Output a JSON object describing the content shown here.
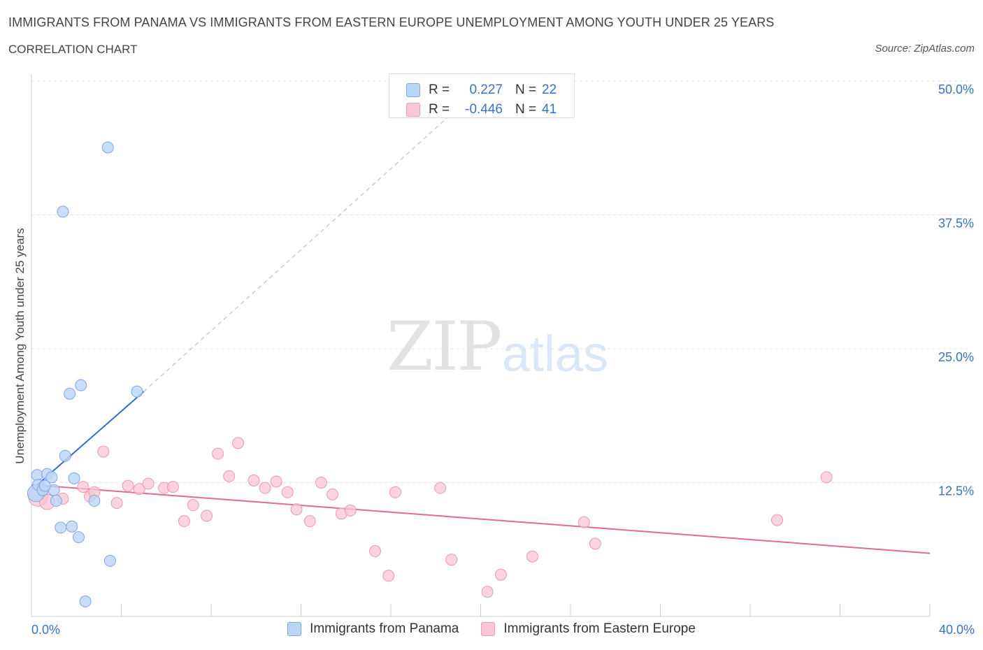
{
  "title": "IMMIGRANTS FROM PANAMA VS IMMIGRANTS FROM EASTERN EUROPE UNEMPLOYMENT AMONG YOUTH UNDER 25 YEARS",
  "subtitle": "CORRELATION CHART",
  "source": "Source: ZipAtlas.com",
  "watermark": {
    "zip": "ZIP",
    "atlas": "atlas"
  },
  "legend_top": {
    "rows": [
      {
        "r_label": "R =",
        "r_value": "0.227",
        "n_label": "N =",
        "n_value": "22"
      },
      {
        "r_label": "R =",
        "r_value": "-0.446",
        "n_label": "N =",
        "n_value": "41"
      }
    ]
  },
  "colors": {
    "panama_fill": "#bcd4f6",
    "panama_stroke": "#7fa8df",
    "panama_line": "#2f6fcc",
    "ee_fill": "#f9c6d5",
    "ee_stroke": "#eb9ab3",
    "ee_line": "#e06c96",
    "grid": "#e3e3e3",
    "axis": "#cccccc",
    "tick_text": "#3a72c4"
  },
  "chart_data": {
    "type": "scatter",
    "title": "IMMIGRANTS FROM PANAMA VS IMMIGRANTS FROM EASTERN EUROPE UNEMPLOYMENT AMONG YOUTH UNDER 25 YEARS",
    "xlabel": "",
    "ylabel": "Unemployment Among Youth under 25 years",
    "xlim": [
      0,
      40
    ],
    "ylim": [
      0,
      50
    ],
    "x_tick_labels": [
      "0.0%",
      "40.0%"
    ],
    "y_ticks": [
      12.5,
      25.0,
      37.5,
      50.0
    ],
    "y_tick_labels": [
      "12.5%",
      "25.0%",
      "37.5%",
      "50.0%"
    ],
    "grid": true,
    "series": [
      {
        "name": "Immigrants from Panama",
        "points": [
          [
            0.2,
            11.5
          ],
          [
            0.25,
            13.2
          ],
          [
            0.3,
            12.3
          ],
          [
            0.5,
            11.8
          ],
          [
            0.7,
            13.3
          ],
          [
            0.9,
            13.0
          ],
          [
            1.0,
            11.8
          ],
          [
            1.1,
            10.8
          ],
          [
            1.3,
            8.3
          ],
          [
            1.5,
            15.0
          ],
          [
            1.7,
            20.8
          ],
          [
            1.8,
            8.4
          ],
          [
            1.9,
            12.9
          ],
          [
            2.1,
            7.4
          ],
          [
            2.2,
            21.6
          ],
          [
            2.4,
            1.4
          ],
          [
            2.8,
            10.8
          ],
          [
            3.4,
            43.8
          ],
          [
            3.5,
            5.2
          ],
          [
            4.7,
            21.0
          ],
          [
            1.4,
            37.8
          ],
          [
            0.6,
            12.2
          ]
        ],
        "trend": {
          "x": [
            0.1,
            5.0
          ],
          "y": [
            12.0,
            21.0
          ],
          "dashed_extension_to": [
            19.0,
            47.5
          ]
        }
      },
      {
        "name": "Immigrants from Eastern Europe",
        "points": [
          [
            0.3,
            11.2
          ],
          [
            0.7,
            10.7
          ],
          [
            1.4,
            11.0
          ],
          [
            2.3,
            12.1
          ],
          [
            2.6,
            11.2
          ],
          [
            2.8,
            11.6
          ],
          [
            3.2,
            15.4
          ],
          [
            3.8,
            10.6
          ],
          [
            4.3,
            12.2
          ],
          [
            4.8,
            11.9
          ],
          [
            5.2,
            12.4
          ],
          [
            5.9,
            12.0
          ],
          [
            6.3,
            12.1
          ],
          [
            6.8,
            8.9
          ],
          [
            7.2,
            10.4
          ],
          [
            7.8,
            9.4
          ],
          [
            8.3,
            15.2
          ],
          [
            8.8,
            13.1
          ],
          [
            9.2,
            16.2
          ],
          [
            9.9,
            12.7
          ],
          [
            10.4,
            12.0
          ],
          [
            10.9,
            12.6
          ],
          [
            11.4,
            11.6
          ],
          [
            11.8,
            10.0
          ],
          [
            12.4,
            8.9
          ],
          [
            12.9,
            12.5
          ],
          [
            13.4,
            11.4
          ],
          [
            13.8,
            9.6
          ],
          [
            14.2,
            9.9
          ],
          [
            15.3,
            6.1
          ],
          [
            15.9,
            3.8
          ],
          [
            16.2,
            11.6
          ],
          [
            18.2,
            12.0
          ],
          [
            18.7,
            5.3
          ],
          [
            20.3,
            2.3
          ],
          [
            20.9,
            3.9
          ],
          [
            22.3,
            5.6
          ],
          [
            24.6,
            8.8
          ],
          [
            25.1,
            6.8
          ],
          [
            33.2,
            9.0
          ],
          [
            35.4,
            13.0
          ]
        ],
        "trend": {
          "x": [
            0.0,
            40.0
          ],
          "y": [
            12.3,
            5.9
          ]
        }
      }
    ]
  }
}
